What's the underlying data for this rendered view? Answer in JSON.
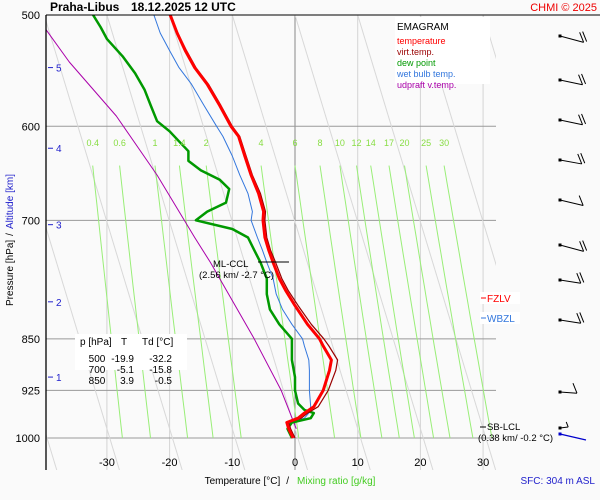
{
  "header": {
    "station": "Praha-Libus",
    "datetime": "18.12.2025 12 UTC",
    "copyright": "CHMI © 2025"
  },
  "footer": {
    "surface": "SFC: 304 m ASL"
  },
  "chart_data": {
    "type": "line",
    "title": "EMAGRAM",
    "xlabel": "Temperature [°C]",
    "xlabel_secondary": "Mixing ratio [g/kg]",
    "xlabel_separator": "/",
    "ylabel": "Pressure [hPa]",
    "ylabel_secondary": "Altitude [km]",
    "ylabel_separator": "/",
    "xlim": [
      -40,
      32
    ],
    "ylim": [
      1000,
      500
    ],
    "x_ticks": [
      -30,
      -20,
      -10,
      0,
      10,
      20,
      30
    ],
    "x_tick_labels": [
      "-30",
      "-20",
      "-10",
      "0",
      "10",
      "20",
      "30"
    ],
    "pressure_ticks": [
      500,
      600,
      700,
      850,
      925,
      1000
    ],
    "pressure_tick_labels": [
      "500",
      "600",
      "700",
      "850",
      "925",
      "1000"
    ],
    "altitude_ticks": [
      {
        "km": 5,
        "p": 545,
        "label": "5"
      },
      {
        "km": 4,
        "p": 622,
        "label": "4"
      },
      {
        "km": 3,
        "p": 705,
        "label": "3"
      },
      {
        "km": 2,
        "p": 800,
        "label": "2"
      },
      {
        "km": 1,
        "p": 905,
        "label": "1"
      }
    ],
    "mixing_ratio_labels": [
      "0.4",
      "0.6",
      "1",
      "1.4",
      "2",
      "4",
      "6",
      "8",
      "10",
      "12",
      "14",
      "17",
      "20",
      "25",
      "30"
    ],
    "mixing_ratio_values": [
      0.4,
      0.6,
      1,
      1.4,
      2,
      4,
      6,
      8,
      10,
      12,
      14,
      17,
      20,
      25,
      30
    ],
    "legend": {
      "placement": "top-right",
      "entries": [
        {
          "label": "temperature",
          "color": "#ff0000"
        },
        {
          "label": "virt.temp.",
          "color": "#990000"
        },
        {
          "label": "dew point",
          "color": "#009900"
        },
        {
          "label": "wet bulb temp.",
          "color": "#3377dd"
        },
        {
          "label": "udpraft v.temp.",
          "color": "#aa00aa"
        }
      ]
    },
    "series": [
      {
        "name": "temperature",
        "color": "#ff0000",
        "points": [
          [
            -0.3,
            1000
          ],
          [
            -1.0,
            985
          ],
          [
            -1.3,
            975
          ],
          [
            0.5,
            968
          ],
          [
            1.5,
            960
          ],
          [
            3.0,
            950
          ],
          [
            4.5,
            925
          ],
          [
            5.5,
            895
          ],
          [
            5.8,
            880
          ],
          [
            4.5,
            860
          ],
          [
            3.9,
            850
          ],
          [
            2.0,
            830
          ],
          [
            0.0,
            805
          ],
          [
            -1.5,
            785
          ],
          [
            -2.5,
            770
          ],
          [
            -3.5,
            750
          ],
          [
            -4.2,
            735
          ],
          [
            -4.8,
            720
          ],
          [
            -5.1,
            700
          ],
          [
            -5.0,
            690
          ],
          [
            -5.8,
            670
          ],
          [
            -7.0,
            650
          ],
          [
            -8.0,
            630
          ],
          [
            -9.0,
            610
          ],
          [
            -10.2,
            600
          ],
          [
            -12.0,
            580
          ],
          [
            -14.0,
            560
          ],
          [
            -16.0,
            545
          ],
          [
            -17.5,
            530
          ],
          [
            -18.8,
            515
          ],
          [
            -19.9,
            500
          ]
        ]
      },
      {
        "name": "virt.temp.",
        "color": "#990000",
        "points": [
          [
            0.0,
            1000
          ],
          [
            -0.7,
            985
          ],
          [
            -1.0,
            975
          ],
          [
            1.0,
            968
          ],
          [
            2.0,
            960
          ],
          [
            3.7,
            950
          ],
          [
            5.3,
            925
          ],
          [
            6.5,
            895
          ],
          [
            6.8,
            880
          ],
          [
            5.4,
            860
          ],
          [
            4.6,
            850
          ],
          [
            2.6,
            830
          ],
          [
            0.5,
            805
          ],
          [
            -1.1,
            785
          ],
          [
            -2.1,
            770
          ],
          [
            -3.1,
            750
          ],
          [
            -3.9,
            735
          ],
          [
            -4.5,
            720
          ],
          [
            -4.8,
            700
          ],
          [
            -4.7,
            690
          ],
          [
            -5.5,
            670
          ],
          [
            -6.8,
            650
          ],
          [
            -7.8,
            630
          ],
          [
            -8.8,
            610
          ],
          [
            -10.0,
            600
          ],
          [
            -11.8,
            580
          ],
          [
            -13.8,
            560
          ],
          [
            -15.8,
            545
          ],
          [
            -17.3,
            530
          ],
          [
            -18.7,
            515
          ],
          [
            -19.8,
            500
          ]
        ]
      },
      {
        "name": "dew point",
        "color": "#009900",
        "points": [
          [
            -0.5,
            1000
          ],
          [
            -1.2,
            985
          ],
          [
            -0.5,
            975
          ],
          [
            2.5,
            968
          ],
          [
            3.0,
            960
          ],
          [
            1.5,
            955
          ],
          [
            0.5,
            945
          ],
          [
            0.0,
            925
          ],
          [
            0.0,
            905
          ],
          [
            -0.5,
            880
          ],
          [
            -0.5,
            850
          ],
          [
            -2.5,
            830
          ],
          [
            -4.0,
            810
          ],
          [
            -4.5,
            790
          ],
          [
            -4.5,
            770
          ],
          [
            -5.5,
            750
          ],
          [
            -6.5,
            735
          ],
          [
            -7.5,
            720
          ],
          [
            -10.0,
            710
          ],
          [
            -15.8,
            700
          ],
          [
            -14.0,
            690
          ],
          [
            -11.0,
            680
          ],
          [
            -10.5,
            665
          ],
          [
            -12.0,
            655
          ],
          [
            -15.0,
            645
          ],
          [
            -17.0,
            635
          ],
          [
            -17.0,
            625
          ],
          [
            -18.5,
            615
          ],
          [
            -20.0,
            605
          ],
          [
            -22.0,
            595
          ],
          [
            -23.0,
            580
          ],
          [
            -24.0,
            565
          ],
          [
            -25.5,
            550
          ],
          [
            -27.5,
            535
          ],
          [
            -30.0,
            520
          ],
          [
            -31.0,
            510
          ],
          [
            -32.2,
            500
          ]
        ]
      },
      {
        "name": "wet bulb temp.",
        "color": "#3377dd",
        "points": [
          [
            -0.4,
            1000
          ],
          [
            -1.1,
            985
          ],
          [
            -0.8,
            975
          ],
          [
            1.5,
            968
          ],
          [
            2.2,
            960
          ],
          [
            2.5,
            950
          ],
          [
            2.3,
            925
          ],
          [
            2.3,
            895
          ],
          [
            2.2,
            880
          ],
          [
            1.5,
            860
          ],
          [
            1.2,
            850
          ],
          [
            -0.5,
            830
          ],
          [
            -2.0,
            810
          ],
          [
            -3.0,
            790
          ],
          [
            -3.5,
            770
          ],
          [
            -4.5,
            750
          ],
          [
            -5.2,
            735
          ],
          [
            -6.0,
            720
          ],
          [
            -7.0,
            700
          ],
          [
            -6.8,
            690
          ],
          [
            -7.5,
            670
          ],
          [
            -8.8,
            650
          ],
          [
            -10.0,
            630
          ],
          [
            -11.5,
            610
          ],
          [
            -12.5,
            600
          ],
          [
            -14.5,
            580
          ],
          [
            -16.5,
            560
          ],
          [
            -18.5,
            545
          ],
          [
            -20.0,
            530
          ],
          [
            -21.5,
            515
          ],
          [
            -22.5,
            500
          ]
        ]
      },
      {
        "name": "udpraft v.temp.",
        "color": "#aa00aa",
        "points": [
          [
            0.2,
            985
          ],
          [
            -2.2,
            925
          ],
          [
            -6.5,
            850
          ],
          [
            -13.5,
            750
          ],
          [
            -16.0,
            720
          ],
          [
            -22.0,
            650
          ],
          [
            -28.5,
            590
          ],
          [
            -36.0,
            540
          ],
          [
            -40.0,
            510
          ]
        ]
      }
    ],
    "annotations": [
      {
        "name": "ML-CCL",
        "line1": "ML-CCL",
        "line2": "(2.56 km/ -2.7 °C)",
        "p": 745,
        "t": -2.7
      },
      {
        "name": "SB-LCL",
        "line1": "SB-LCL",
        "line2": "(0.38 km/ -0.2 °C)",
        "p": 980,
        "t": -0.2
      },
      {
        "name": "FZLV",
        "label": "FZLV",
        "color": "#ff0000",
        "p": 790
      },
      {
        "name": "WBZL",
        "label": "WBZL",
        "color": "#3377dd",
        "p": 812
      }
    ],
    "table": {
      "headers": [
        "p [hPa]",
        "T",
        "Td [°C]"
      ],
      "rows": [
        [
          "500",
          "-19.9",
          "-32.2"
        ],
        [
          "700",
          "-5.1",
          "-15.8"
        ],
        [
          "850",
          "3.9",
          "-0.5"
        ]
      ]
    },
    "wind_barbs": [
      {
        "p": 515,
        "direction_deg": 260,
        "speed_kt": 20
      },
      {
        "p": 560,
        "direction_deg": 250,
        "speed_kt": 20
      },
      {
        "p": 610,
        "direction_deg": 250,
        "speed_kt": 20
      },
      {
        "p": 650,
        "direction_deg": 245,
        "speed_kt": 20
      },
      {
        "p": 700,
        "direction_deg": 255,
        "speed_kt": 10
      },
      {
        "p": 750,
        "direction_deg": 260,
        "speed_kt": 20
      },
      {
        "p": 800,
        "direction_deg": 240,
        "speed_kt": 20
      },
      {
        "p": 850,
        "direction_deg": 240,
        "speed_kt": 20
      },
      {
        "p": 925,
        "direction_deg": 225,
        "speed_kt": 10
      },
      {
        "p": 975,
        "direction_deg": 200,
        "speed_kt": 5,
        "surface_arrow_direction_deg": 110,
        "surface_arrow_color": "#0000cc"
      }
    ]
  }
}
